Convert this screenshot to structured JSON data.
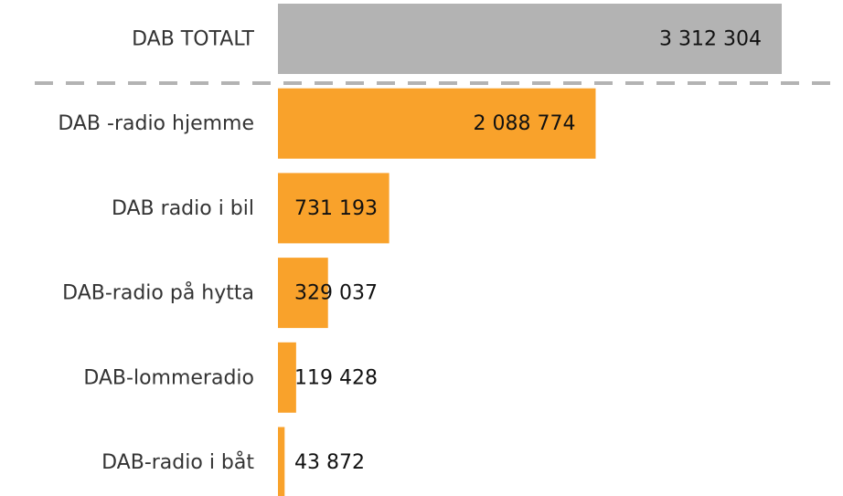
{
  "chart_data": {
    "type": "hbar",
    "categories": [
      "DAB TOTALT",
      "DAB -radio hjemme",
      "DAB radio i bil",
      "DAB-radio på hytta",
      "DAB-lommeradio",
      "DAB-radio i båt"
    ],
    "values": [
      3312304,
      2088774,
      731193,
      329037,
      119428,
      43872
    ],
    "value_labels": [
      "3 312 304",
      "2 088 774",
      "731 193",
      "329 037",
      "119 428",
      "43 872"
    ],
    "colors": [
      "#b3b3b3",
      "#f9a22b",
      "#f9a22b",
      "#f9a22b",
      "#f9a22b",
      "#f9a22b"
    ]
  }
}
